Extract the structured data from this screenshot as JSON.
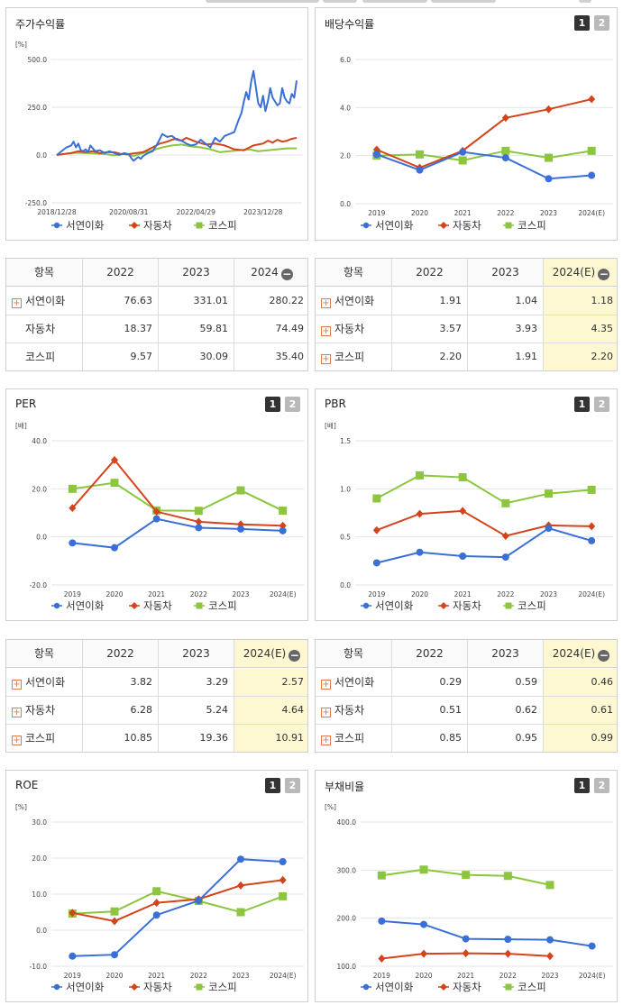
{
  "series_names": [
    "서연이화",
    "자동차",
    "코스피"
  ],
  "series_colors": [
    "#3a6fd8",
    "#d3441c",
    "#8cc63f"
  ],
  "tabs": [
    "1",
    "2"
  ],
  "stock_return": {
    "title": "주가수익률",
    "chart_data": {
      "type": "line",
      "unit": "[%]",
      "yticks": [
        "500.0",
        "250.0",
        "0.0",
        "-250.0"
      ],
      "ylim": [
        -250,
        500
      ],
      "xticks": [
        "2018/12/28",
        "2020/08/31",
        "2022/04/29",
        "2023/12/28"
      ],
      "xlim": [
        0,
        100
      ],
      "series": [
        {
          "name": "서연이화",
          "x": [
            0,
            2,
            4,
            6,
            7,
            8,
            9,
            10,
            11,
            12,
            13,
            14,
            16,
            18,
            20,
            22,
            24,
            26,
            28,
            30,
            31,
            32,
            33,
            34,
            35,
            36,
            38,
            40,
            42,
            44,
            46,
            48,
            50,
            52,
            54,
            56,
            58,
            60,
            62,
            64,
            66,
            68,
            70,
            72,
            74,
            76,
            77,
            78,
            79,
            80,
            81,
            82,
            84,
            85,
            86,
            87,
            88,
            89,
            90,
            92,
            93,
            94,
            95,
            96,
            97,
            98,
            99,
            100
          ],
          "y": [
            0,
            20,
            40,
            50,
            70,
            40,
            60,
            25,
            20,
            30,
            15,
            50,
            20,
            25,
            10,
            20,
            10,
            0,
            10,
            5,
            -15,
            -30,
            -20,
            -10,
            -20,
            -5,
            10,
            20,
            60,
            110,
            95,
            100,
            80,
            75,
            60,
            50,
            55,
            80,
            60,
            40,
            90,
            70,
            100,
            110,
            120,
            190,
            220,
            280,
            330,
            290,
            380,
            440,
            270,
            250,
            310,
            230,
            280,
            350,
            300,
            260,
            270,
            350,
            300,
            280,
            270,
            320,
            300,
            390
          ]
        },
        {
          "name": "자동차",
          "x": [
            0,
            3,
            6,
            9,
            12,
            15,
            18,
            21,
            24,
            27,
            30,
            33,
            36,
            40,
            43,
            46,
            48,
            50,
            52,
            54,
            56,
            58,
            62,
            66,
            70,
            74,
            78,
            82,
            86,
            88,
            90,
            92,
            94,
            96,
            98,
            100
          ],
          "y": [
            0,
            5,
            10,
            20,
            15,
            20,
            10,
            15,
            15,
            5,
            5,
            10,
            15,
            40,
            60,
            70,
            80,
            85,
            75,
            90,
            80,
            70,
            55,
            60,
            50,
            30,
            25,
            50,
            60,
            75,
            65,
            80,
            70,
            75,
            85,
            90
          ]
        },
        {
          "name": "코스피",
          "x": [
            0,
            4,
            8,
            12,
            16,
            20,
            24,
            28,
            32,
            36,
            40,
            44,
            48,
            52,
            56,
            60,
            64,
            68,
            72,
            76,
            80,
            84,
            88,
            92,
            96,
            100
          ],
          "y": [
            0,
            8,
            12,
            10,
            8,
            5,
            -2,
            5,
            -5,
            10,
            25,
            40,
            50,
            55,
            45,
            40,
            30,
            15,
            20,
            25,
            30,
            20,
            25,
            30,
            35,
            35
          ]
        }
      ]
    },
    "table": {
      "header": [
        "항목",
        "2022",
        "2023",
        "2024"
      ],
      "rows": [
        {
          "label": "서연이화",
          "values": [
            "76.63",
            "331.01",
            "280.22"
          ]
        },
        {
          "label": "자동차",
          "values": [
            "18.37",
            "59.81",
            "74.49"
          ]
        },
        {
          "label": "코스피",
          "values": [
            "9.57",
            "30.09",
            "35.40"
          ]
        }
      ]
    }
  },
  "dividend": {
    "title": "배당수익률",
    "chart_data": {
      "type": "line",
      "yticks": [
        "6.0",
        "4.0",
        "2.0",
        "0.0"
      ],
      "ylim": [
        0,
        6
      ],
      "categories": [
        "2019",
        "2020",
        "2021",
        "2022",
        "2023",
        "2024(E)"
      ],
      "series": [
        {
          "name": "서연이화",
          "values": [
            2.05,
            1.4,
            2.15,
            1.91,
            1.04,
            1.18
          ]
        },
        {
          "name": "자동차",
          "values": [
            2.25,
            1.5,
            2.2,
            3.57,
            3.93,
            4.35
          ]
        },
        {
          "name": "코스피",
          "values": [
            2.0,
            2.05,
            1.8,
            2.2,
            1.91,
            2.2
          ]
        }
      ]
    },
    "table": {
      "header": [
        "항목",
        "2022",
        "2023",
        "2024(E)"
      ],
      "rows": [
        {
          "label": "서연이화",
          "values": [
            "1.91",
            "1.04",
            "1.18"
          ]
        },
        {
          "label": "자동차",
          "values": [
            "3.57",
            "3.93",
            "4.35"
          ]
        },
        {
          "label": "코스피",
          "values": [
            "2.20",
            "1.91",
            "2.20"
          ]
        }
      ]
    }
  },
  "per": {
    "title": "PER",
    "chart_data": {
      "type": "line",
      "unit": "[배]",
      "yticks": [
        "40.0",
        "20.0",
        "0.0",
        "-20.0"
      ],
      "ylim": [
        -20,
        40
      ],
      "categories": [
        "2019",
        "2020",
        "2021",
        "2022",
        "2023",
        "2024(E)"
      ],
      "series": [
        {
          "name": "서연이화",
          "values": [
            -2.5,
            -4.5,
            7.5,
            3.82,
            3.29,
            2.57
          ]
        },
        {
          "name": "자동차",
          "values": [
            12,
            32,
            10.5,
            6.28,
            5.24,
            4.64
          ]
        },
        {
          "name": "코스피",
          "values": [
            20,
            22.5,
            11,
            10.85,
            19.36,
            10.91
          ]
        }
      ]
    },
    "table": {
      "header": [
        "항목",
        "2022",
        "2023",
        "2024(E)"
      ],
      "rows": [
        {
          "label": "서연이화",
          "values": [
            "3.82",
            "3.29",
            "2.57"
          ]
        },
        {
          "label": "자동차",
          "values": [
            "6.28",
            "5.24",
            "4.64"
          ]
        },
        {
          "label": "코스피",
          "values": [
            "10.85",
            "19.36",
            "10.91"
          ]
        }
      ]
    }
  },
  "pbr": {
    "title": "PBR",
    "chart_data": {
      "type": "line",
      "unit": "[배]",
      "yticks": [
        "1.5",
        "1.0",
        "0.5",
        "0.0"
      ],
      "ylim": [
        0,
        1.5
      ],
      "categories": [
        "2019",
        "2020",
        "2021",
        "2022",
        "2023",
        "2024(E)"
      ],
      "series": [
        {
          "name": "서연이화",
          "values": [
            0.23,
            0.34,
            0.3,
            0.29,
            0.59,
            0.46
          ]
        },
        {
          "name": "자동차",
          "values": [
            0.57,
            0.74,
            0.77,
            0.51,
            0.62,
            0.61
          ]
        },
        {
          "name": "코스피",
          "values": [
            0.9,
            1.14,
            1.12,
            0.85,
            0.95,
            0.99
          ]
        }
      ]
    },
    "table": {
      "header": [
        "항목",
        "2022",
        "2023",
        "2024(E)"
      ],
      "rows": [
        {
          "label": "서연이화",
          "values": [
            "0.29",
            "0.59",
            "0.46"
          ]
        },
        {
          "label": "자동차",
          "values": [
            "0.51",
            "0.62",
            "0.61"
          ]
        },
        {
          "label": "코스피",
          "values": [
            "0.85",
            "0.95",
            "0.99"
          ]
        }
      ]
    }
  },
  "roe": {
    "title": "ROE",
    "chart_data": {
      "type": "line",
      "unit": "[%]",
      "yticks": [
        "30.0",
        "20.0",
        "10.0",
        "0.0",
        "-10.0"
      ],
      "ylim": [
        -10,
        30
      ],
      "categories": [
        "2019",
        "2020",
        "2021",
        "2022",
        "2023",
        "2024(E)"
      ],
      "series": [
        {
          "name": "서연이화",
          "values": [
            -7.2,
            -6.8,
            4.2,
            8.2,
            19.7,
            19.0
          ]
        },
        {
          "name": "자동차",
          "values": [
            4.8,
            2.5,
            7.6,
            8.6,
            12.4,
            13.9
          ]
        },
        {
          "name": "코스피",
          "values": [
            4.6,
            5.2,
            10.8,
            8.1,
            5.0,
            9.4
          ]
        }
      ]
    }
  },
  "debt": {
    "title": "부채비율",
    "chart_data": {
      "type": "line",
      "unit": "[%]",
      "yticks": [
        "400.0",
        "300.0",
        "200.0",
        "100.0"
      ],
      "ylim": [
        100,
        400
      ],
      "categories": [
        "2019",
        "2020",
        "2021",
        "2022",
        "2023",
        "2024(E)"
      ],
      "series": [
        {
          "name": "서연이화",
          "values": [
            194,
            187,
            157,
            156,
            155,
            142
          ]
        },
        {
          "name": "자동차",
          "values": [
            116,
            126,
            127,
            126,
            121,
            null
          ]
        },
        {
          "name": "코스피",
          "values": [
            289,
            301,
            290,
            288,
            269,
            null
          ]
        }
      ]
    }
  }
}
